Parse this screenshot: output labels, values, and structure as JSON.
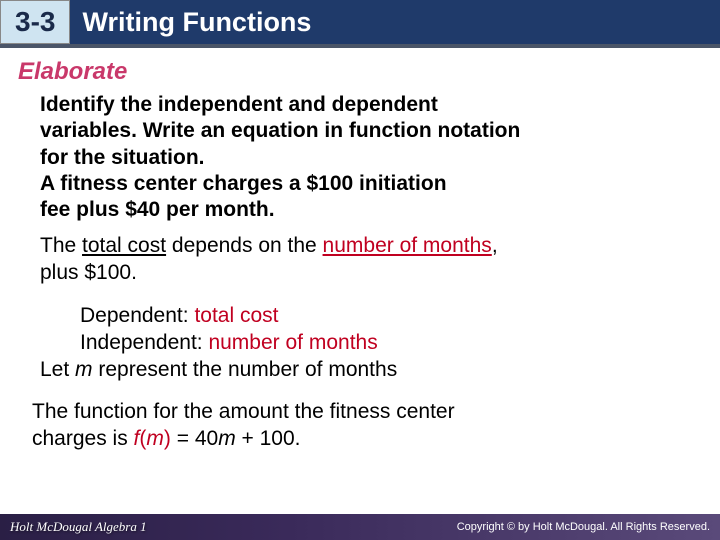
{
  "header": {
    "chapter": "3-3",
    "title": "Writing Functions"
  },
  "section_label": "Elaborate",
  "problem": {
    "line1": "Identify the independent and dependent",
    "line2": "variables. Write an equation in function notation",
    "line3": "for the situation.",
    "line4": "A fitness center charges a $100 initiation",
    "line5": " fee plus $40 per month."
  },
  "explain": {
    "pre": "The ",
    "dep": "total cost",
    "mid": " depends on the ",
    "indep": "number of months",
    "post": ",",
    "line2": "plus $100."
  },
  "vars": {
    "dep_label": "Dependent: ",
    "dep_val": "total cost",
    "indep_label": "Independent: ",
    "indep_val": "number of months",
    "let_pre": "Let ",
    "let_var": "m",
    "let_post": " represent the number of months"
  },
  "result": {
    "line1": "The function for the amount the fitness center",
    "l2_pre": "charges is ",
    "fn_f": "f",
    "fn_open": "(",
    "fn_m1": "m",
    "fn_close": ")",
    "eq": " = 40",
    "fn_m2": "m",
    "tail": " + 100."
  },
  "footer": {
    "left": "Holt McDougal Algebra 1",
    "right": "Copyright © by Holt McDougal. All Rights Reserved."
  },
  "colors": {
    "header_bg": "#1f3a6a",
    "badge_bg": "#cfe4f1",
    "section_color": "#c9386a",
    "red": "#c00020",
    "footer_grad_start": "#2a1f45",
    "footer_grad_end": "#5a4a7a"
  }
}
